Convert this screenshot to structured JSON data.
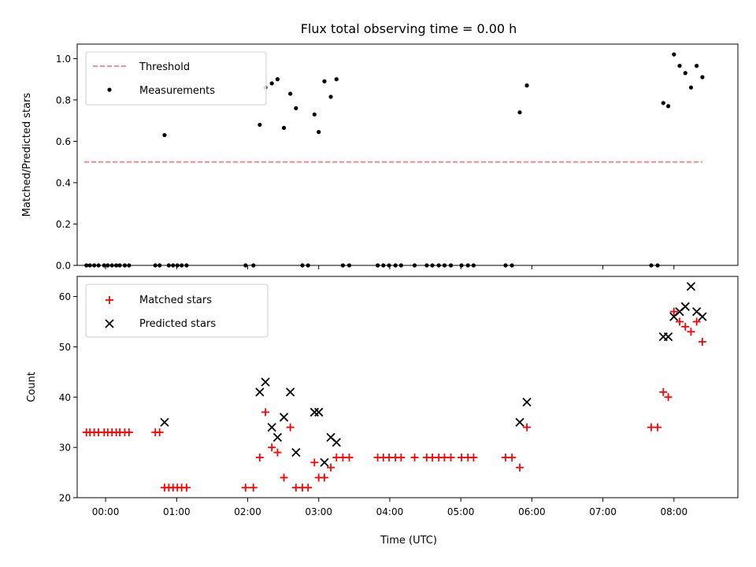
{
  "chart_data": [
    {
      "type": "scatter",
      "title": "Flux total observing time = 0.00 h",
      "xlabel": "",
      "ylabel": "Matched/Predicted stars",
      "xlim": [
        -0.4,
        8.9
      ],
      "ylim": [
        0.0,
        1.07
      ],
      "xticks": [
        0,
        1,
        2,
        3,
        4,
        5,
        6,
        7,
        8
      ],
      "xticklabels": [],
      "yticks": [
        0.0,
        0.2,
        0.4,
        0.6,
        0.8,
        1.0
      ],
      "yticklabels": [
        "0.0",
        "0.2",
        "0.4",
        "0.6",
        "0.8",
        "1.0"
      ],
      "legend_position": "top-left",
      "threshold": {
        "name": "Threshold",
        "color": "#ff7f7f",
        "style": "dashed",
        "x": [
          -0.3,
          8.4
        ],
        "y": 0.5
      },
      "series": [
        {
          "name": "Measurements",
          "color": "#000000",
          "marker": "dot",
          "x": [
            -0.27,
            -0.22,
            -0.16,
            -0.1,
            -0.02,
            0.03,
            0.09,
            0.15,
            0.2,
            0.27,
            0.33,
            0.7,
            0.76,
            0.83,
            0.89,
            0.95,
            1.01,
            1.07,
            1.14,
            1.97,
            2.08,
            2.17,
            2.25,
            2.34,
            2.42,
            2.51,
            2.6,
            2.68,
            2.77,
            2.85,
            2.94,
            3.0,
            3.08,
            3.17,
            3.25,
            3.34,
            3.43,
            3.83,
            3.91,
            3.99,
            4.08,
            4.16,
            4.35,
            4.52,
            4.6,
            4.69,
            4.77,
            4.86,
            5.01,
            5.1,
            5.18,
            5.63,
            5.72,
            5.83,
            5.93,
            7.68,
            7.77,
            7.85,
            7.92,
            8.0,
            8.08,
            8.16,
            8.24,
            8.32,
            8.4
          ],
          "y": [
            0,
            0,
            0,
            0,
            0,
            0,
            0,
            0,
            0,
            0,
            0,
            0,
            0,
            0.63,
            0,
            0,
            0,
            0,
            0,
            0,
            0,
            0.68,
            0.86,
            0.88,
            0.9,
            0.665,
            0.83,
            0.76,
            0,
            0,
            0.73,
            0.645,
            0.89,
            0.815,
            0.9,
            0,
            0,
            0,
            0,
            0,
            0,
            0,
            0,
            0,
            0,
            0,
            0,
            0,
            0,
            0,
            0,
            0,
            0,
            0.74,
            0.87,
            0,
            0,
            0.785,
            0.77,
            1.02,
            0.965,
            0.93,
            0.86,
            0.965,
            0.91
          ]
        }
      ]
    },
    {
      "type": "scatter",
      "title": "",
      "xlabel": "Time (UTC)",
      "ylabel": "Count",
      "xlim": [
        -0.4,
        8.9
      ],
      "ylim": [
        20,
        64
      ],
      "xticks": [
        0,
        1,
        2,
        3,
        4,
        5,
        6,
        7,
        8
      ],
      "xticklabels": [
        "00:00",
        "01:00",
        "02:00",
        "03:00",
        "04:00",
        "05:00",
        "06:00",
        "07:00",
        "08:00"
      ],
      "yticks": [
        20,
        30,
        40,
        50,
        60
      ],
      "yticklabels": [
        "20",
        "30",
        "40",
        "50",
        "60"
      ],
      "legend_position": "top-left",
      "series": [
        {
          "name": "Matched stars",
          "color": "#ff0000",
          "marker": "plus",
          "x": [
            -0.27,
            -0.22,
            -0.16,
            -0.1,
            -0.02,
            0.03,
            0.09,
            0.15,
            0.2,
            0.27,
            0.33,
            0.7,
            0.76,
            0.83,
            0.89,
            0.95,
            1.01,
            1.07,
            1.14,
            1.97,
            2.08,
            2.17,
            2.25,
            2.34,
            2.42,
            2.51,
            2.6,
            2.68,
            2.77,
            2.85,
            2.94,
            3.0,
            3.08,
            3.17,
            3.25,
            3.34,
            3.43,
            3.83,
            3.91,
            3.99,
            4.08,
            4.16,
            4.35,
            4.52,
            4.6,
            4.69,
            4.77,
            4.86,
            5.01,
            5.1,
            5.18,
            5.63,
            5.72,
            5.83,
            5.93,
            7.68,
            7.77,
            7.85,
            7.92,
            8.0,
            8.08,
            8.16,
            8.24,
            8.32,
            8.4
          ],
          "y": [
            33,
            33,
            33,
            33,
            33,
            33,
            33,
            33,
            33,
            33,
            33,
            33,
            33,
            22,
            22,
            22,
            22,
            22,
            22,
            22,
            22,
            28,
            37,
            30,
            29,
            24,
            34,
            22,
            22,
            22,
            27,
            24,
            24,
            26,
            28,
            28,
            28,
            28,
            28,
            28,
            28,
            28,
            28,
            28,
            28,
            28,
            28,
            28,
            28,
            28,
            28,
            28,
            28,
            26,
            34,
            34,
            34,
            41,
            40,
            57,
            55,
            54,
            53,
            55,
            51
          ]
        },
        {
          "name": "Predicted stars",
          "color": "#000000",
          "marker": "x",
          "x": [
            0.83,
            2.17,
            2.25,
            2.34,
            2.42,
            2.51,
            2.6,
            2.68,
            2.94,
            3.0,
            3.08,
            3.17,
            3.25,
            5.83,
            5.93,
            7.85,
            7.92,
            8.0,
            8.08,
            8.16,
            8.24,
            8.32,
            8.4
          ],
          "y": [
            35,
            41,
            43,
            34,
            32,
            36,
            41,
            29,
            37,
            37,
            27,
            32,
            31,
            35,
            39,
            52,
            52,
            56,
            57,
            58,
            62,
            57,
            56
          ]
        }
      ]
    }
  ]
}
